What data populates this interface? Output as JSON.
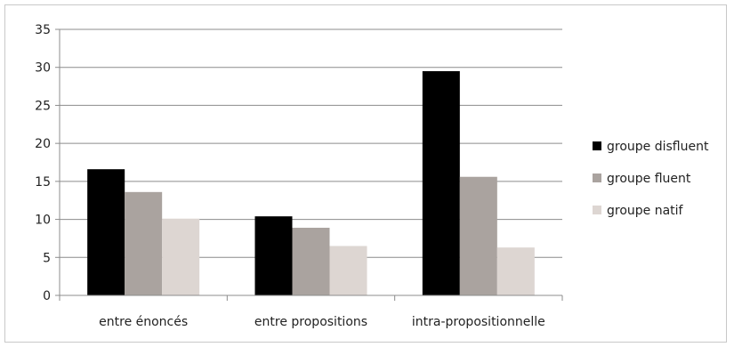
{
  "chart_data": {
    "type": "bar",
    "categories": [
      "entre énoncés",
      "entre propositions",
      "intra-propositionnelle"
    ],
    "series": [
      {
        "name": "groupe disfluent",
        "values": [
          16.6,
          10.4,
          29.5
        ],
        "color": "#000000"
      },
      {
        "name": "groupe fluent",
        "values": [
          13.6,
          8.9,
          15.6
        ],
        "color": "#aaa39f"
      },
      {
        "name": "groupe natif",
        "values": [
          10.1,
          6.5,
          6.3
        ],
        "color": "#ddd6d2"
      }
    ],
    "ylim": [
      0,
      35
    ],
    "yticks": [
      0,
      5,
      10,
      15,
      20,
      25,
      30,
      35
    ],
    "grid": true,
    "legend_position": "right"
  }
}
